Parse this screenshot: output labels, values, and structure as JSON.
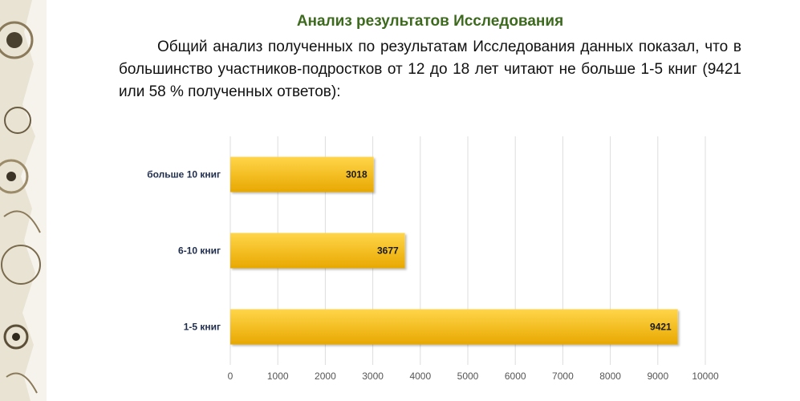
{
  "page": {
    "heading": "Анализ результатов Исследования",
    "paragraph": "Общий анализ полученных по результатам Исследования данных показал, что в большинство участников-подростков от 12 до 18 лет читают не больше 1-5 книг (9421 или 58 % полученных ответов):"
  },
  "colors": {
    "heading": "#3d6a1f",
    "bar_top": "#ffd54a",
    "bar_bottom": "#e8a800",
    "grid": "#dddddd"
  },
  "chart_data": {
    "type": "bar",
    "orientation": "horizontal",
    "categories": [
      "больше 10 книг",
      "6-10 книг",
      "1-5 книг"
    ],
    "values": [
      3018,
      3677,
      9421
    ],
    "xlim": [
      0,
      10000
    ],
    "x_ticks": [
      "0",
      "1000",
      "2000",
      "3000",
      "4000",
      "5000",
      "6000",
      "7000",
      "8000",
      "9000",
      "10000"
    ],
    "data_labels": [
      "3018",
      "3677",
      "9421"
    ],
    "grid": true,
    "legend": "none"
  }
}
